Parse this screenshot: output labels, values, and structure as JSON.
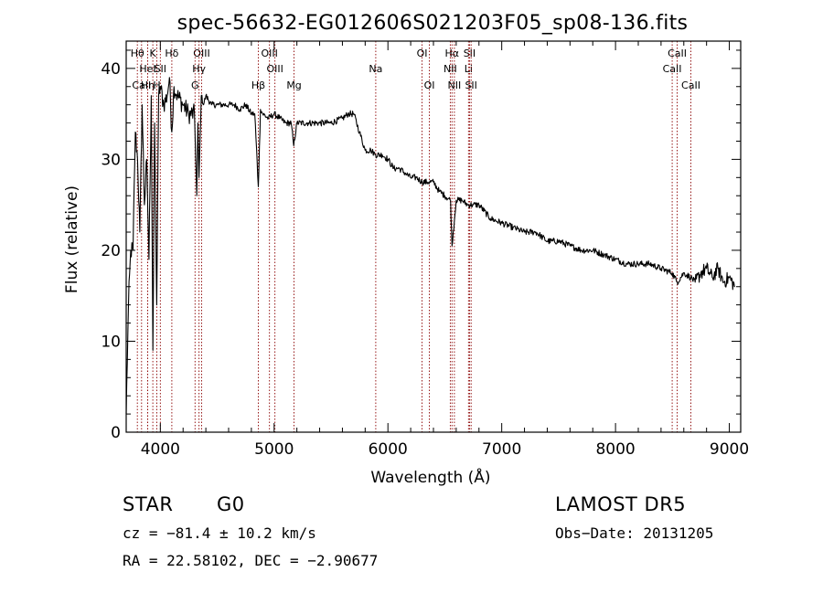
{
  "chart_data": {
    "type": "line",
    "title": "spec-56632-EG012606S021203F05_sp08-136.fits",
    "xlabel": "Wavelength (Å)",
    "ylabel": "Flux (relative)",
    "xlim": [
      3700,
      9100
    ],
    "ylim": [
      0,
      43
    ],
    "x_ticks": [
      4000,
      5000,
      6000,
      7000,
      8000,
      9000
    ],
    "y_ticks": [
      0,
      10,
      20,
      30,
      40
    ],
    "grid": false,
    "line_color": "#000000",
    "marker_color": "#8b0000",
    "series": [
      {
        "x": [
          3700,
          3720,
          3740,
          3760,
          3780,
          3800,
          3820,
          3840,
          3860,
          3880,
          3900,
          3920,
          3935,
          3950,
          3968,
          3985,
          4000,
          4030,
          4060,
          4080,
          4101,
          4120,
          4150,
          4200,
          4250,
          4300,
          4320,
          4330,
          4340,
          4360,
          4380,
          4400,
          4450,
          4500,
          4550,
          4600,
          4650,
          4700,
          4750,
          4800,
          4830,
          4861,
          4880,
          4900,
          4950,
          5000,
          5050,
          5100,
          5150,
          5172,
          5200,
          5300,
          5400,
          5500,
          5600,
          5650,
          5700,
          5750,
          5800,
          5850,
          5892,
          5950,
          6000,
          6050,
          6100,
          6150,
          6200,
          6250,
          6300,
          6350,
          6400,
          6450,
          6500,
          6550,
          6563,
          6600,
          6650,
          6700,
          6750,
          6800,
          6900,
          7000,
          7100,
          7200,
          7300,
          7400,
          7500,
          7600,
          7700,
          7800,
          7900,
          8000,
          8100,
          8200,
          8300,
          8400,
          8498,
          8542,
          8600,
          8662,
          8700,
          8750,
          8800,
          8850,
          8900,
          8950,
          9000,
          9050
        ],
        "y": [
          2,
          14,
          20,
          20,
          33,
          30,
          22,
          36,
          25,
          30,
          19,
          37,
          9,
          34,
          14,
          37,
          38,
          36,
          37,
          39,
          33,
          38,
          37,
          36,
          35,
          35,
          26,
          34,
          28,
          37,
          36,
          37,
          36,
          36,
          36,
          36,
          36,
          35.5,
          36,
          35,
          35,
          27,
          35.5,
          35,
          34.5,
          35,
          34.5,
          34,
          34,
          31.5,
          34,
          34,
          34,
          34,
          34.5,
          35,
          35,
          33,
          31,
          31,
          30.5,
          30.5,
          30,
          29,
          29,
          28.5,
          28,
          28,
          27.5,
          27.5,
          27.5,
          26.5,
          26,
          25.5,
          20.5,
          25.5,
          25.5,
          25,
          25,
          25,
          23.5,
          23,
          22.5,
          22,
          22,
          21,
          21,
          20.5,
          20,
          20,
          19.5,
          19,
          18.5,
          18.5,
          18.5,
          18,
          17.5,
          16.5,
          17.5,
          17,
          16.5,
          17.5,
          18,
          17,
          18,
          16.5,
          17,
          16
        ]
      }
    ],
    "lines": [
      {
        "label": "Hθ",
        "x": 3798,
        "row": 0
      },
      {
        "label": "CaII",
        "x": 3835,
        "row": 2
      },
      {
        "label": "HeI",
        "x": 3889,
        "row": 1
      },
      {
        "label": "Hη",
        "x": 3889,
        "row": 2
      },
      {
        "label": "K",
        "x": 3934,
        "row": 0
      },
      {
        "label": "H",
        "x": 3969,
        "row": 2
      },
      {
        "label": "SII",
        "x": 4000,
        "row": 1
      },
      {
        "label": "Hδ",
        "x": 4101,
        "row": 0
      },
      {
        "label": "OIII",
        "x": 4363,
        "row": 0
      },
      {
        "label": "Hγ",
        "x": 4340,
        "row": 1
      },
      {
        "label": "G",
        "x": 4305,
        "row": 2
      },
      {
        "label": "Hβ",
        "x": 4861,
        "row": 2
      },
      {
        "label": "OIII",
        "x": 4959,
        "row": 0
      },
      {
        "label": "OIII",
        "x": 5007,
        "row": 1
      },
      {
        "label": "Mg",
        "x": 5175,
        "row": 2
      },
      {
        "label": "Na",
        "x": 5893,
        "row": 1
      },
      {
        "label": "OI",
        "x": 6300,
        "row": 0
      },
      {
        "label": "OI",
        "x": 6364,
        "row": 2
      },
      {
        "label": "Hα",
        "x": 6563,
        "row": 0
      },
      {
        "label": "NII",
        "x": 6548,
        "row": 1
      },
      {
        "label": "NII",
        "x": 6584,
        "row": 2
      },
      {
        "label": "SII",
        "x": 6717,
        "row": 0
      },
      {
        "label": "Li",
        "x": 6708,
        "row": 1
      },
      {
        "label": "SII",
        "x": 6731,
        "row": 2
      },
      {
        "label": "CaII",
        "x": 8542,
        "row": 0
      },
      {
        "label": "CaII",
        "x": 8498,
        "row": 1
      },
      {
        "label": "CaII",
        "x": 8662,
        "row": 2
      }
    ]
  },
  "info": {
    "object_class": "STAR",
    "subclass": "G0",
    "survey": "LAMOST DR5",
    "cz": "cz = −81.4 ± 10.2 km/s",
    "obs_date": "Obs−Date: 20131205",
    "coords": "RA =  22.58102, DEC =  −2.90677"
  }
}
